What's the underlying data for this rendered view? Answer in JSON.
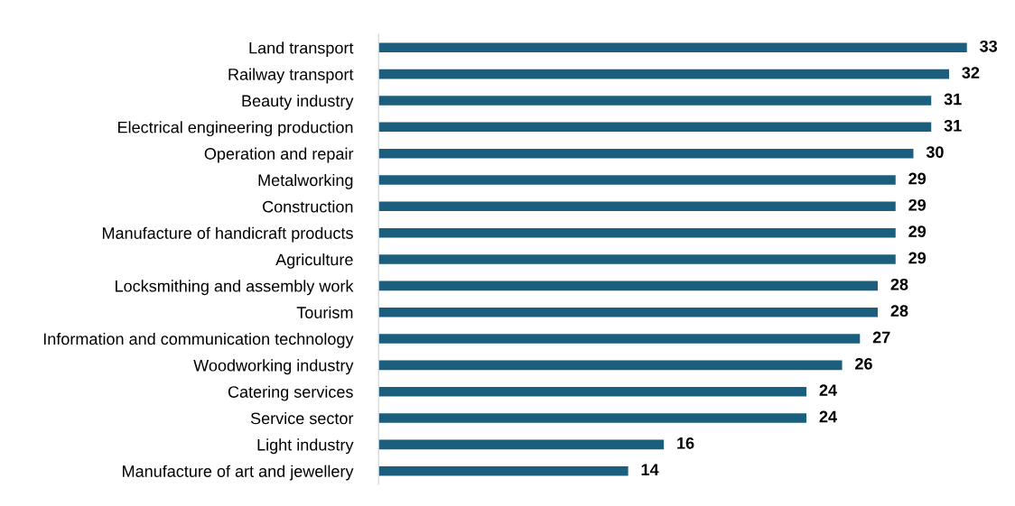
{
  "chart_data": {
    "type": "bar",
    "orientation": "horizontal",
    "categories": [
      "Land transport",
      "Railway transport",
      "Beauty industry",
      "Electrical engineering production",
      "Operation and repair",
      "Metalworking",
      "Construction",
      "Manufacture of handicraft products",
      "Agriculture",
      "Locksmithing and assembly work",
      "Tourism",
      "Information and communication technology",
      "Woodworking industry",
      "Catering services",
      "Service sector",
      "Light industry",
      "Manufacture of art and jewellery"
    ],
    "values": [
      33,
      32,
      31,
      31,
      30,
      29,
      29,
      29,
      29,
      28,
      28,
      27,
      26,
      24,
      24,
      16,
      14
    ],
    "color": "#1b5e7e",
    "data_labels": true,
    "tick_labels": "y",
    "grid": false,
    "legend": false
  }
}
